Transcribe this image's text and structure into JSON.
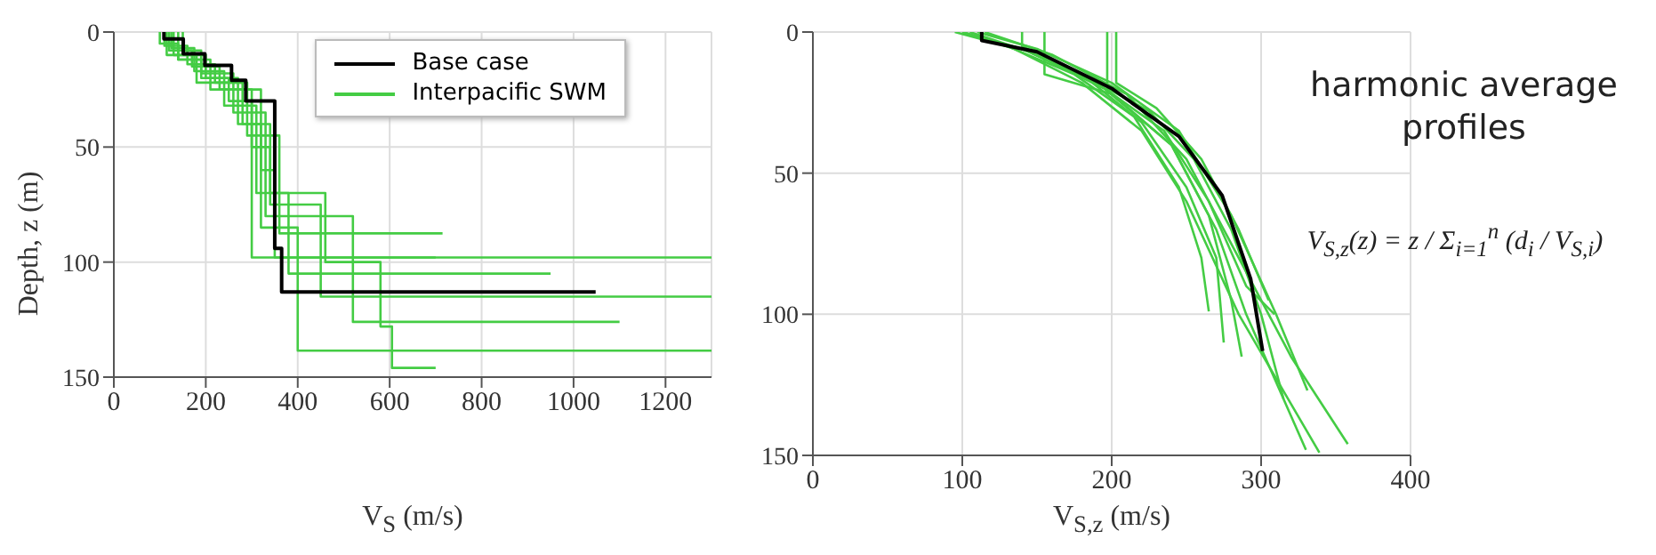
{
  "chart_data": [
    {
      "type": "line",
      "xlabel": "V$_{S}$ (m/s)",
      "ylabel": "Depth, z (m)",
      "xlim": [
        0,
        1300
      ],
      "xticks": [
        0,
        200,
        400,
        600,
        800,
        1000,
        1200
      ],
      "ylim": [
        150,
        0
      ],
      "yticks": [
        0,
        50,
        100,
        150
      ],
      "grid": true,
      "legend": "top right",
      "line_style": "solid",
      "marker": "none",
      "series": [
        {
          "color": "#44cc44",
          "x": [
            100,
            100,
            140,
            140,
            190,
            190,
            250,
            250,
            300,
            300,
            1300
          ],
          "values": [
            0,
            5,
            5,
            12,
            12,
            20,
            20,
            30,
            30,
            98,
            98
          ]
        },
        {
          "color": "#44cc44",
          "x": [
            120,
            120,
            170,
            170,
            230,
            230,
            320,
            320,
            350,
            350,
            700
          ],
          "values": [
            0,
            8,
            8,
            15,
            15,
            25,
            25,
            60,
            60,
            98,
            98
          ]
        },
        {
          "color": "#44cc44",
          "x": [
            110,
            110,
            160,
            160,
            220,
            220,
            290,
            290,
            360,
            360,
            715
          ],
          "values": [
            0,
            6,
            6,
            14,
            14,
            22,
            22,
            45,
            45,
            87.5,
            87.5
          ]
        },
        {
          "color": "#44cc44",
          "x": [
            130,
            130,
            200,
            200,
            270,
            270,
            340,
            340,
            380,
            380,
            950
          ],
          "values": [
            0,
            10,
            10,
            20,
            20,
            40,
            40,
            70,
            70,
            105,
            105
          ]
        },
        {
          "color": "#44cc44",
          "x": [
            140,
            140,
            210,
            210,
            300,
            300,
            340,
            340,
            450,
            450,
            1300
          ],
          "values": [
            0,
            12,
            12,
            25,
            25,
            50,
            50,
            75,
            75,
            115,
            115
          ]
        },
        {
          "color": "#44cc44",
          "x": [
            150,
            150,
            190,
            190,
            260,
            260,
            330,
            330,
            520,
            520,
            1100
          ],
          "values": [
            0,
            8,
            8,
            18,
            18,
            35,
            35,
            80,
            80,
            126,
            126
          ]
        },
        {
          "color": "#44cc44",
          "x": [
            115,
            115,
            180,
            180,
            280,
            280,
            320,
            320,
            400,
            400,
            1300
          ],
          "values": [
            0,
            10,
            10,
            22,
            22,
            40,
            40,
            85,
            85,
            138.5,
            138.5
          ]
        },
        {
          "name": "Interpacific SWM",
          "color": "#44cc44",
          "x": [
            125,
            125,
            175,
            175,
            240,
            240,
            310,
            310,
            460,
            460,
            580,
            580,
            605,
            605,
            700
          ],
          "values": [
            0,
            7,
            7,
            17,
            17,
            32,
            32,
            70,
            70,
            100,
            100,
            128,
            128,
            146,
            146
          ]
        },
        {
          "name": "Base case",
          "color": "#000000",
          "x": [
            109,
            109,
            151,
            151,
            198,
            198,
            256,
            256,
            287,
            287,
            350,
            350,
            365,
            365,
            1048
          ],
          "values": [
            0,
            3,
            3,
            9.5,
            9.5,
            14.5,
            14.5,
            21,
            21,
            30,
            30,
            94,
            94,
            113,
            113
          ]
        }
      ]
    },
    {
      "type": "line",
      "xlabel": "V$_{S,z}$ (m/s)",
      "xlim": [
        0,
        400
      ],
      "xticks": [
        0,
        100,
        200,
        300,
        400
      ],
      "ylim": [
        150,
        0
      ],
      "yticks": [
        0,
        50,
        100,
        150
      ],
      "grid": true,
      "line_style": "solid",
      "marker": "none",
      "annotations": [
        "harmonic average profiles",
        "V$_{S,z}$(z) = z / Σ$_{i=1}$$^{n}$ (d$_{i}$ / V$_{S,i}$)"
      ],
      "series": [
        {
          "color": "#44cc44",
          "x": [
            100,
            140,
            190,
            235,
            265,
            290,
            309
          ],
          "values": [
            0,
            6,
            18,
            35,
            60,
            90,
            100
          ]
        },
        {
          "color": "#44cc44",
          "x": [
            95,
            130,
            175,
            215,
            245,
            260,
            265
          ],
          "values": [
            0,
            5,
            15,
            30,
            55,
            80,
            99
          ]
        },
        {
          "color": "#44cc44",
          "x": [
            105,
            145,
            195,
            240,
            265,
            280,
            287
          ],
          "values": [
            0,
            7,
            20,
            40,
            65,
            95,
            115
          ]
        },
        {
          "color": "#44cc44",
          "x": [
            110,
            150,
            200,
            245,
            280,
            310,
            331
          ],
          "values": [
            0,
            6,
            18,
            35,
            65,
            100,
            127
          ]
        },
        {
          "color": "#44cc44",
          "x": [
            115,
            160,
            210,
            250,
            285,
            320,
            358
          ],
          "values": [
            0,
            8,
            22,
            45,
            80,
            115,
            146
          ]
        },
        {
          "color": "#44cc44",
          "x": [
            100,
            135,
            180,
            220,
            250,
            285,
            339
          ],
          "values": [
            0,
            6,
            18,
            35,
            60,
            100,
            149
          ]
        },
        {
          "color": "#44cc44",
          "x": [
            155,
            155,
            200,
            240,
            270,
            290,
            330
          ],
          "values": [
            0,
            15,
            22,
            40,
            70,
            100,
            148
          ]
        },
        {
          "color": "#44cc44",
          "x": [
            197,
            197,
            225,
            255,
            280,
            300,
            315
          ],
          "values": [
            0,
            20,
            28,
            45,
            70,
            100,
            130
          ]
        },
        {
          "color": "#44cc44",
          "x": [
            203,
            203,
            230,
            260,
            285,
            305
          ],
          "values": [
            0,
            18,
            27,
            45,
            70,
            95
          ]
        },
        {
          "color": "#44cc44",
          "x": [
            140,
            140,
            180,
            220,
            250,
            270,
            275
          ],
          "values": [
            0,
            5,
            15,
            32,
            55,
            80,
            110
          ]
        },
        {
          "color": "#000000",
          "x": [
            113,
            113,
            150,
            200,
            245,
            274,
            293,
            301
          ],
          "values": [
            0,
            3,
            7,
            20,
            37,
            58,
            87.5,
            113
          ]
        }
      ]
    }
  ]
}
